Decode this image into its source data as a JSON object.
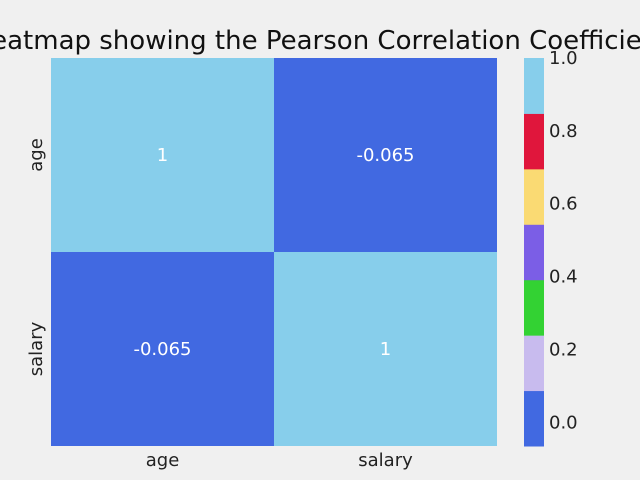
{
  "chart_data": {
    "type": "heatmap",
    "title": "Heatmap showing the Pearson Correlation Coefficient",
    "xlabel": "",
    "ylabel": "",
    "x_categories": [
      "age",
      "salary"
    ],
    "y_categories": [
      "age",
      "salary"
    ],
    "values": [
      [
        1,
        -0.065
      ],
      [
        -0.065,
        1
      ]
    ],
    "cell_labels": [
      [
        "1",
        "-0.065"
      ],
      [
        "-0.065",
        "1"
      ]
    ],
    "colorbar": {
      "range": [
        -0.065,
        1.0
      ],
      "bins": [
        "#4169e1",
        "#c8bbee",
        "#33d233",
        "#7b5ee6",
        "#fada73",
        "#e0163c",
        "#87ceeb"
      ],
      "ticks": [
        0.0,
        0.2,
        0.4,
        0.6,
        0.8,
        1.0
      ],
      "tick_labels": [
        "0.0",
        "0.2",
        "0.4",
        "0.6",
        "0.8",
        "1.0"
      ]
    },
    "grid": false,
    "legend": "colorbar-right"
  }
}
